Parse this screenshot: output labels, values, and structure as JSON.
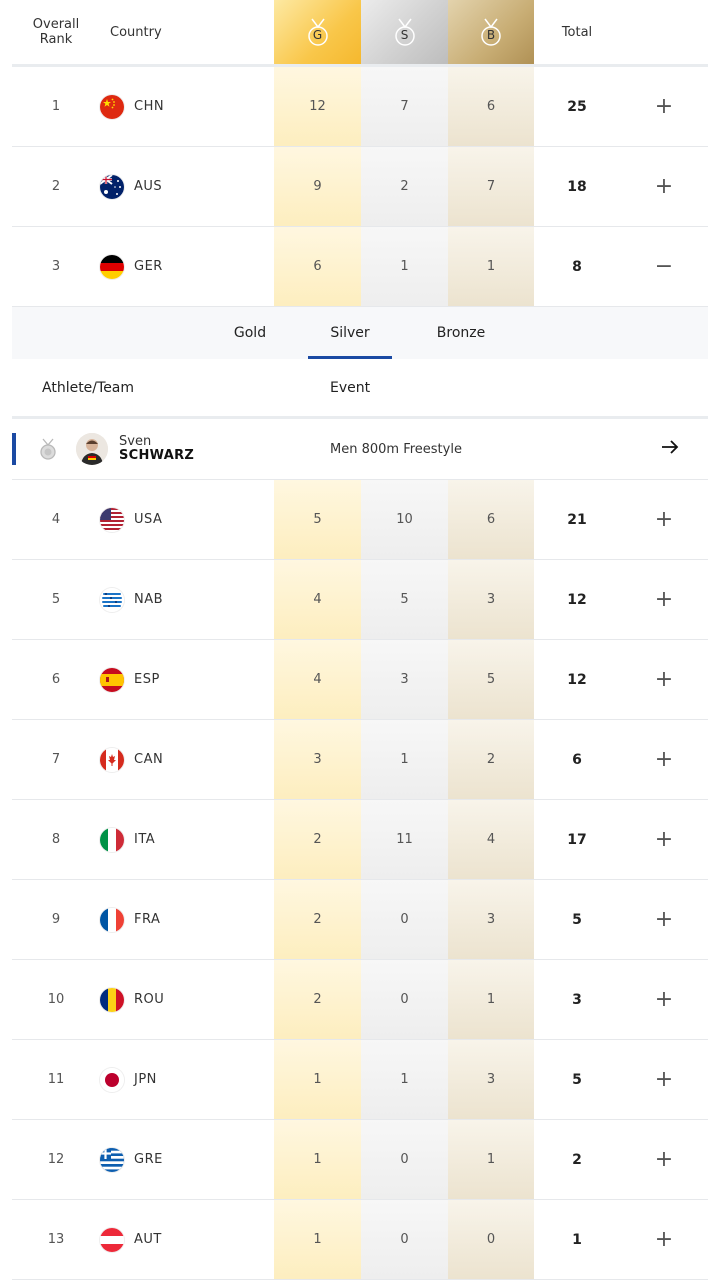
{
  "header": {
    "rank_line1": "Overall",
    "rank_line2": "Rank",
    "country": "Country",
    "gold": "G",
    "silver": "S",
    "bronze": "B",
    "total": "Total"
  },
  "colors": {
    "gold": "#f9c74a",
    "silver": "#cfcfcf",
    "bronze": "#c8ad74",
    "accent": "#1b4aa3"
  },
  "rows_top": [
    {
      "rank": "1",
      "code": "CHN",
      "flag": "china-flag",
      "g": "12",
      "s": "7",
      "b": "6",
      "total": "25",
      "toggle": "+"
    },
    {
      "rank": "2",
      "code": "AUS",
      "flag": "australia-flag",
      "g": "9",
      "s": "2",
      "b": "7",
      "total": "18",
      "toggle": "+"
    },
    {
      "rank": "3",
      "code": "GER",
      "flag": "germany-flag",
      "g": "6",
      "s": "1",
      "b": "1",
      "total": "8",
      "toggle": "−"
    }
  ],
  "panel": {
    "tabs": {
      "gold": "Gold",
      "silver": "Silver",
      "bronze": "Bronze",
      "active": "Silver"
    },
    "athlete_header": "Athlete/Team",
    "event_header": "Event",
    "athlete": {
      "first": "Sven",
      "last": "SCHWARZ",
      "event": "Men 800m Freestyle",
      "medal": "silver-medal-icon"
    }
  },
  "rows_bottom": [
    {
      "rank": "4",
      "code": "USA",
      "flag": "usa-flag",
      "g": "5",
      "s": "10",
      "b": "6",
      "total": "21",
      "toggle": "+"
    },
    {
      "rank": "5",
      "code": "NAB",
      "flag": "nab-flag",
      "g": "4",
      "s": "5",
      "b": "3",
      "total": "12",
      "toggle": "+"
    },
    {
      "rank": "6",
      "code": "ESP",
      "flag": "spain-flag",
      "g": "4",
      "s": "3",
      "b": "5",
      "total": "12",
      "toggle": "+"
    },
    {
      "rank": "7",
      "code": "CAN",
      "flag": "canada-flag",
      "g": "3",
      "s": "1",
      "b": "2",
      "total": "6",
      "toggle": "+"
    },
    {
      "rank": "8",
      "code": "ITA",
      "flag": "italy-flag",
      "g": "2",
      "s": "11",
      "b": "4",
      "total": "17",
      "toggle": "+"
    },
    {
      "rank": "9",
      "code": "FRA",
      "flag": "france-flag",
      "g": "2",
      "s": "0",
      "b": "3",
      "total": "5",
      "toggle": "+"
    },
    {
      "rank": "10",
      "code": "ROU",
      "flag": "romania-flag",
      "g": "2",
      "s": "0",
      "b": "1",
      "total": "3",
      "toggle": "+"
    },
    {
      "rank": "11",
      "code": "JPN",
      "flag": "japan-flag",
      "g": "1",
      "s": "1",
      "b": "3",
      "total": "5",
      "toggle": "+"
    },
    {
      "rank": "12",
      "code": "GRE",
      "flag": "greece-flag",
      "g": "1",
      "s": "0",
      "b": "1",
      "total": "2",
      "toggle": "+"
    },
    {
      "rank": "13",
      "code": "AUT",
      "flag": "austria-flag",
      "g": "1",
      "s": "0",
      "b": "0",
      "total": "1",
      "toggle": "+"
    }
  ]
}
